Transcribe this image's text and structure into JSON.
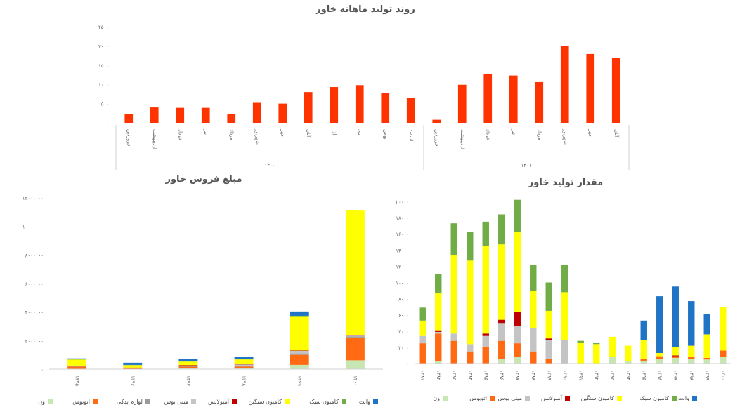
{
  "colors": {
    "van": "#c8e6b4",
    "bus": "#ff6a13",
    "parts": "#9b9b9b",
    "minibus": "#c4c4c4",
    "ambulance": "#c00000",
    "heavy": "#ffff00",
    "light": "#70ad47",
    "pickup": "#1f74c6",
    "monthly": "#ff3300",
    "axis": "#d0d0d0"
  },
  "chart_data": [
    {
      "id": "monthly",
      "type": "bar",
      "title": "روند تولید ماهانه خاور",
      "ylim": [
        0,
        2500
      ],
      "yticks": [
        0,
        500,
        1000,
        1500,
        2000,
        2500
      ],
      "ytick_labels": [
        "۰",
        "۵۰۰",
        "۱۰۰۰",
        "۱۵۰۰",
        "۲۰۰۰",
        "۲۵۰۰"
      ],
      "groups": [
        {
          "label": "۱۴۰۰",
          "categories": [
            "فروردین",
            "اردیبهشت",
            "خرداد",
            "تیر",
            "مرداد",
            "شهریور",
            "مهر",
            "آبان",
            "آذر",
            "دی",
            "بهمن",
            "اسفند"
          ],
          "values": [
            220,
            400,
            390,
            390,
            220,
            520,
            500,
            800,
            930,
            980,
            780,
            640
          ]
        },
        {
          "label": "۱۴۰۱",
          "categories": [
            "فروردین",
            "اردیبهشت",
            "خرداد",
            "تیر",
            "مرداد",
            "شهریور",
            "مهر",
            "آبان"
          ],
          "values": [
            80,
            990,
            1270,
            1230,
            1060,
            2000,
            1790,
            1690
          ]
        }
      ]
    },
    {
      "id": "sales",
      "type": "bar",
      "stacked": true,
      "title": "مبلغ فروش خاور",
      "ylim": [
        0,
        12000000
      ],
      "yticks": [
        0,
        2000000,
        4000000,
        6000000,
        8000000,
        10000000,
        12000000
      ],
      "ytick_labels": [
        "۰",
        "۲۰۰۰۰۰۰",
        "۴۰۰۰۰۰۰",
        "۶۰۰۰۰۰۰",
        "۸۰۰۰۰۰۰",
        "۱۰۰۰۰۰۰۰",
        "۱۲۰۰۰۰۰۰"
      ],
      "categories": [
        "۱۳۹۵",
        "۱۳۹۶",
        "۱۳۹۷",
        "۱۳۹۸",
        "۱۳۹۹",
        "۱۴۰۰"
      ],
      "series": [
        {
          "name": "ون",
          "key": "van",
          "values": [
            20000,
            20000,
            50000,
            100000,
            300000,
            620000
          ]
        },
        {
          "name": "اتوبوس",
          "key": "bus",
          "values": [
            160000,
            30000,
            120000,
            80000,
            700000,
            1600000
          ]
        },
        {
          "name": "لوازم یدکی",
          "key": "parts",
          "values": [
            30000,
            20000,
            30000,
            40000,
            100000,
            80000
          ]
        },
        {
          "name": "مینی بوس",
          "key": "minibus",
          "values": [
            20000,
            30000,
            40000,
            100000,
            180000,
            50000
          ]
        },
        {
          "name": "آمبولانس",
          "key": "ambulance",
          "values": [
            20000,
            10000,
            40000,
            20000,
            30000,
            10000
          ]
        },
        {
          "name": "کامیون سنگین",
          "key": "heavy",
          "values": [
            420000,
            170000,
            250000,
            340000,
            2400000,
            8800000
          ]
        },
        {
          "name": "کامیون سبک",
          "key": "light",
          "values": [
            30000,
            20000,
            30000,
            30000,
            30000,
            0
          ]
        },
        {
          "name": "وانت",
          "key": "pickup",
          "values": [
            50000,
            150000,
            150000,
            170000,
            300000,
            0
          ]
        }
      ]
    },
    {
      "id": "production",
      "type": "bar",
      "stacked": true,
      "title": "مقدار تولید خاور",
      "ylim": [
        0,
        20000
      ],
      "yticks": [
        0,
        2000,
        4000,
        6000,
        8000,
        10000,
        12000,
        14000,
        16000,
        18000,
        20000
      ],
      "ytick_labels": [
        "۰",
        "۲۰۰۰",
        "۴۰۰۰",
        "۶۰۰۰",
        "۸۰۰۰",
        "۱۰۰۰۰",
        "۱۲۰۰۰",
        "۱۴۰۰۰",
        "۱۶۰۰۰",
        "۱۸۰۰۰",
        "۲۰۰۰۰"
      ],
      "categories": [
        "۱۳۸۱",
        "۱۳۸۲",
        "۱۳۸۳",
        "۱۳۸۴",
        "۱۳۸۵",
        "۱۳۸۶",
        "۱۳۸۷",
        "۱۳۸۸",
        "۱۳۸۹",
        "۱۳۹۰",
        "۱۳۹۱",
        "۱۳۹۲",
        "۱۳۹۳",
        "۱۳۹۴",
        "۱۳۹۵",
        "۱۳۹۶",
        "۱۳۹۷",
        "۱۳۹۸",
        "۱۳۹۹",
        "۱۴۰۰"
      ],
      "series": [
        {
          "name": "ون",
          "key": "van",
          "values": [
            0,
            300,
            0,
            0,
            0,
            600,
            800,
            0,
            0,
            0,
            0,
            0,
            800,
            300,
            300,
            600,
            700,
            600,
            500,
            800
          ]
        },
        {
          "name": "اتوبوس",
          "key": "bus",
          "values": [
            2500,
            3400,
            2800,
            1500,
            2100,
            2200,
            1700,
            1500,
            600,
            0,
            0,
            0,
            0,
            0,
            300,
            300,
            200,
            200,
            200,
            800
          ]
        },
        {
          "name": "مینی بوس",
          "key": "minibus",
          "values": [
            900,
            200,
            900,
            900,
            1300,
            2200,
            2100,
            2900,
            2300,
            2900,
            0,
            0,
            0,
            0,
            0,
            0,
            0,
            0,
            0,
            0
          ]
        },
        {
          "name": "آمبولانس",
          "key": "ambulance",
          "values": [
            0,
            200,
            0,
            0,
            300,
            400,
            1800,
            0,
            200,
            0,
            0,
            0,
            0,
            0,
            0,
            0,
            100,
            0,
            0,
            0
          ]
        },
        {
          "name": "کامیون سنگین",
          "key": "heavy",
          "values": [
            1900,
            4600,
            9700,
            10300,
            10800,
            9300,
            9800,
            4600,
            3400,
            5900,
            2600,
            2400,
            2500,
            1900,
            2300,
            400,
            1000,
            1400,
            2900,
            5400
          ]
        },
        {
          "name": "کامیون سبک",
          "key": "light",
          "values": [
            1600,
            2300,
            3900,
            3500,
            3000,
            3700,
            4000,
            3200,
            3500,
            3400,
            200,
            200,
            0,
            0,
            0,
            0,
            0,
            0,
            0,
            0
          ]
        },
        {
          "name": "وانت",
          "key": "pickup",
          "values": [
            0,
            0,
            0,
            0,
            0,
            0,
            0,
            0,
            0,
            0,
            0,
            0,
            0,
            0,
            2400,
            7000,
            7500,
            5500,
            2500,
            0
          ]
        }
      ]
    }
  ]
}
